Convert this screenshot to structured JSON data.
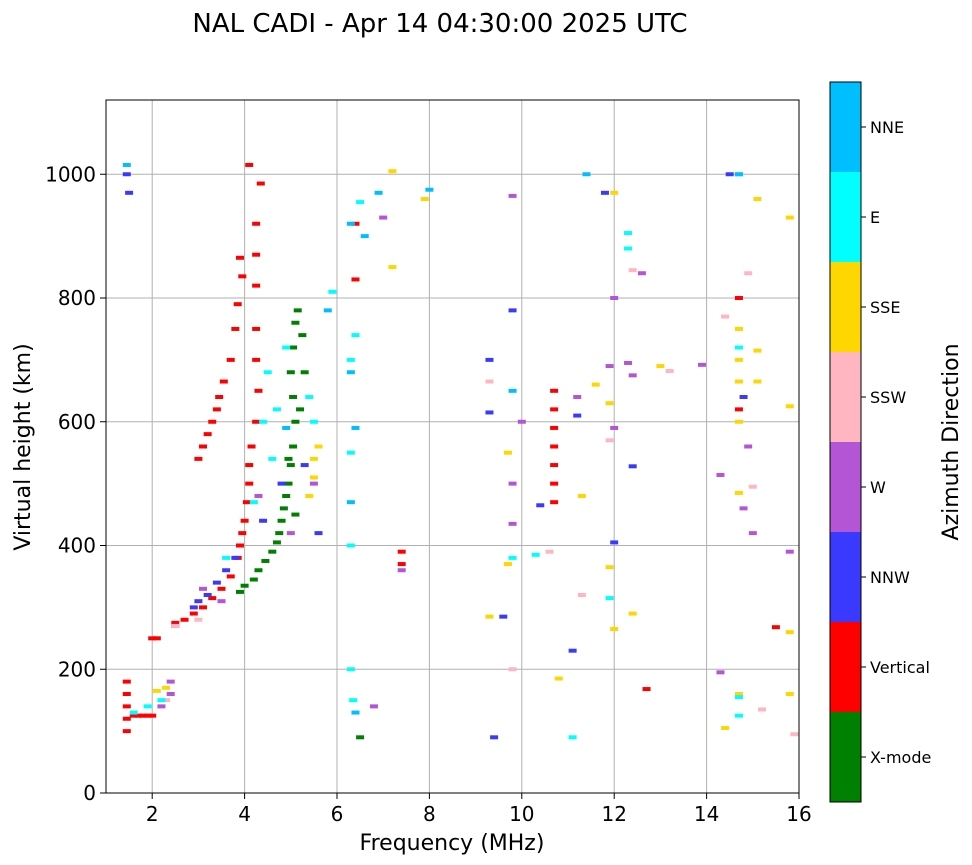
{
  "chart_data": {
    "type": "scatter",
    "title": "NAL CADI - Apr 14 04:30:00 2025 UTC",
    "xlabel": "Frequency (MHz)",
    "ylabel": "Virtual height (km)",
    "xlim": [
      1,
      16
    ],
    "ylim": [
      0,
      1120
    ],
    "xticks": [
      2,
      4,
      6,
      8,
      10,
      12,
      14,
      16
    ],
    "yticks": [
      0,
      200,
      400,
      600,
      800,
      1000
    ],
    "grid": true,
    "colorbar": {
      "title": "Azimuth Direction",
      "position": "right",
      "categories": [
        {
          "name": "X-mode",
          "color": "#008000"
        },
        {
          "name": "Vertical",
          "color": "#ff0000"
        },
        {
          "name": "NNW",
          "color": "#3a3aff"
        },
        {
          "name": "W",
          "color": "#b455d6"
        },
        {
          "name": "SSW",
          "color": "#ffb6c1"
        },
        {
          "name": "SSE",
          "color": "#ffd700"
        },
        {
          "name": "E",
          "color": "#00ffff"
        },
        {
          "name": "NNE",
          "color": "#00bfff"
        }
      ]
    },
    "series": [
      {
        "name": "Vertical",
        "color": "#ff0000",
        "points": [
          [
            1.45,
            100
          ],
          [
            1.45,
            120
          ],
          [
            1.45,
            140
          ],
          [
            1.45,
            160
          ],
          [
            1.45,
            180
          ],
          [
            1.6,
            125
          ],
          [
            1.7,
            125
          ],
          [
            1.8,
            125
          ],
          [
            1.9,
            125
          ],
          [
            2.0,
            125
          ],
          [
            2.0,
            250
          ],
          [
            2.1,
            250
          ],
          [
            2.5,
            275
          ],
          [
            2.7,
            280
          ],
          [
            2.9,
            290
          ],
          [
            3.1,
            300
          ],
          [
            3.3,
            315
          ],
          [
            3.5,
            330
          ],
          [
            3.7,
            350
          ],
          [
            3.85,
            380
          ],
          [
            3.9,
            400
          ],
          [
            3.95,
            420
          ],
          [
            4.0,
            440
          ],
          [
            4.05,
            470
          ],
          [
            4.1,
            500
          ],
          [
            4.1,
            530
          ],
          [
            4.15,
            560
          ],
          [
            4.25,
            600
          ],
          [
            4.3,
            650
          ],
          [
            4.25,
            700
          ],
          [
            4.25,
            750
          ],
          [
            4.25,
            820
          ],
          [
            4.25,
            870
          ],
          [
            4.25,
            920
          ],
          [
            4.35,
            985
          ],
          [
            4.1,
            1015
          ],
          [
            3.95,
            835
          ],
          [
            3.9,
            865
          ],
          [
            3.85,
            790
          ],
          [
            3.8,
            750
          ],
          [
            3.7,
            700
          ],
          [
            3.55,
            665
          ],
          [
            3.45,
            640
          ],
          [
            3.4,
            620
          ],
          [
            3.3,
            600
          ],
          [
            3.2,
            580
          ],
          [
            3.1,
            560
          ],
          [
            3.0,
            540
          ],
          [
            6.4,
            920
          ],
          [
            6.4,
            830
          ],
          [
            10.7,
            650
          ],
          [
            10.7,
            620
          ],
          [
            10.7,
            590
          ],
          [
            10.7,
            560
          ],
          [
            10.7,
            530
          ],
          [
            10.7,
            500
          ],
          [
            10.7,
            470
          ],
          [
            7.4,
            390
          ],
          [
            7.4,
            370
          ],
          [
            14.7,
            800
          ],
          [
            14.7,
            620
          ],
          [
            12.7,
            168
          ],
          [
            15.5,
            268
          ]
        ]
      },
      {
        "name": "X-mode",
        "color": "#008000",
        "points": [
          [
            3.9,
            325
          ],
          [
            4.0,
            335
          ],
          [
            4.2,
            345
          ],
          [
            4.3,
            360
          ],
          [
            4.45,
            375
          ],
          [
            4.6,
            390
          ],
          [
            4.7,
            405
          ],
          [
            4.75,
            420
          ],
          [
            4.8,
            440
          ],
          [
            4.85,
            460
          ],
          [
            4.9,
            480
          ],
          [
            4.95,
            500
          ],
          [
            5.0,
            530
          ],
          [
            5.05,
            560
          ],
          [
            5.1,
            600
          ],
          [
            5.05,
            640
          ],
          [
            5.0,
            680
          ],
          [
            5.05,
            720
          ],
          [
            5.1,
            760
          ],
          [
            5.15,
            780
          ],
          [
            4.95,
            540
          ],
          [
            5.2,
            620
          ],
          [
            5.3,
            680
          ],
          [
            5.25,
            740
          ],
          [
            6.5,
            90
          ],
          [
            5.1,
            450
          ]
        ]
      },
      {
        "name": "NNW",
        "color": "#3a3aff",
        "points": [
          [
            1.45,
            1000
          ],
          [
            1.5,
            970
          ],
          [
            2.5,
            270
          ],
          [
            2.9,
            300
          ],
          [
            3.0,
            310
          ],
          [
            3.2,
            320
          ],
          [
            3.4,
            340
          ],
          [
            3.6,
            360
          ],
          [
            3.8,
            380
          ],
          [
            4.4,
            440
          ],
          [
            4.8,
            500
          ],
          [
            5.3,
            530
          ],
          [
            5.6,
            420
          ],
          [
            9.3,
            700
          ],
          [
            9.3,
            615
          ],
          [
            9.6,
            285
          ],
          [
            9.4,
            90
          ],
          [
            10.4,
            465
          ],
          [
            11.2,
            610
          ],
          [
            11.8,
            970
          ],
          [
            11.1,
            230
          ],
          [
            12.4,
            528
          ],
          [
            14.5,
            1000
          ],
          [
            14.8,
            640
          ],
          [
            12.0,
            405
          ],
          [
            9.8,
            780
          ]
        ]
      },
      {
        "name": "W",
        "color": "#b455d6",
        "points": [
          [
            2.4,
            160
          ],
          [
            2.4,
            180
          ],
          [
            2.2,
            140
          ],
          [
            3.1,
            330
          ],
          [
            3.5,
            310
          ],
          [
            4.3,
            480
          ],
          [
            5.0,
            420
          ],
          [
            5.5,
            500
          ],
          [
            6.8,
            140
          ],
          [
            9.8,
            500
          ],
          [
            9.8,
            435
          ],
          [
            9.8,
            965
          ],
          [
            10.0,
            600
          ],
          [
            11.2,
            640
          ],
          [
            11.9,
            690
          ],
          [
            12.3,
            695
          ],
          [
            12.4,
            675
          ],
          [
            12.6,
            840
          ],
          [
            13.9,
            692
          ],
          [
            14.3,
            514
          ],
          [
            14.3,
            195
          ],
          [
            14.8,
            460
          ],
          [
            14.9,
            560
          ],
          [
            15.0,
            420
          ],
          [
            15.8,
            390
          ],
          [
            7.0,
            930
          ],
          [
            7.4,
            360
          ],
          [
            12.0,
            590
          ],
          [
            12.0,
            800
          ]
        ]
      },
      {
        "name": "SSW",
        "color": "#ffb6c1",
        "points": [
          [
            2.3,
            150
          ],
          [
            2.5,
            270
          ],
          [
            3.0,
            280
          ],
          [
            9.8,
            200
          ],
          [
            9.3,
            665
          ],
          [
            11.3,
            320
          ],
          [
            11.9,
            570
          ],
          [
            12.4,
            845
          ],
          [
            14.4,
            770
          ],
          [
            14.9,
            840
          ],
          [
            15.0,
            495
          ],
          [
            15.2,
            135
          ],
          [
            15.9,
            95
          ],
          [
            10.6,
            390
          ],
          [
            13.2,
            682
          ]
        ]
      },
      {
        "name": "SSE",
        "color": "#ffd700",
        "points": [
          [
            2.1,
            165
          ],
          [
            2.3,
            170
          ],
          [
            5.4,
            480
          ],
          [
            5.5,
            510
          ],
          [
            5.6,
            560
          ],
          [
            5.5,
            540
          ],
          [
            7.2,
            850
          ],
          [
            7.2,
            1005
          ],
          [
            7.9,
            960
          ],
          [
            9.3,
            285
          ],
          [
            9.7,
            370
          ],
          [
            9.7,
            550
          ],
          [
            10.8,
            185
          ],
          [
            11.3,
            480
          ],
          [
            11.6,
            660
          ],
          [
            11.9,
            630
          ],
          [
            11.9,
            365
          ],
          [
            12.0,
            265
          ],
          [
            12.0,
            970
          ],
          [
            12.4,
            290
          ],
          [
            13.0,
            690
          ],
          [
            14.4,
            105
          ],
          [
            14.7,
            750
          ],
          [
            14.7,
            700
          ],
          [
            14.7,
            665
          ],
          [
            14.7,
            600
          ],
          [
            14.7,
            485
          ],
          [
            14.7,
            160
          ],
          [
            15.1,
            960
          ],
          [
            15.1,
            715
          ],
          [
            15.1,
            665
          ],
          [
            15.8,
            625
          ],
          [
            15.8,
            260
          ],
          [
            15.8,
            160
          ],
          [
            15.8,
            930
          ]
        ]
      },
      {
        "name": "E",
        "color": "#00ffff",
        "points": [
          [
            1.6,
            130
          ],
          [
            1.9,
            140
          ],
          [
            2.2,
            150
          ],
          [
            3.6,
            380
          ],
          [
            4.4,
            600
          ],
          [
            4.6,
            540
          ],
          [
            4.5,
            680
          ],
          [
            4.7,
            620
          ],
          [
            4.9,
            720
          ],
          [
            5.4,
            640
          ],
          [
            5.5,
            600
          ],
          [
            5.9,
            810
          ],
          [
            6.3,
            700
          ],
          [
            6.3,
            550
          ],
          [
            6.3,
            400
          ],
          [
            6.4,
            740
          ],
          [
            6.3,
            200
          ],
          [
            6.35,
            150
          ],
          [
            6.5,
            955
          ],
          [
            9.8,
            380
          ],
          [
            10.3,
            385
          ],
          [
            11.1,
            90
          ],
          [
            11.9,
            315
          ],
          [
            12.3,
            880
          ],
          [
            12.3,
            905
          ],
          [
            14.7,
            1000
          ],
          [
            14.7,
            125
          ],
          [
            14.7,
            720
          ],
          [
            14.7,
            155
          ],
          [
            4.2,
            470
          ]
        ]
      },
      {
        "name": "NNE",
        "color": "#00bfff",
        "points": [
          [
            1.45,
            1015
          ],
          [
            6.3,
            920
          ],
          [
            6.3,
            680
          ],
          [
            6.4,
            590
          ],
          [
            6.3,
            470
          ],
          [
            6.4,
            130
          ],
          [
            6.6,
            900
          ],
          [
            6.9,
            970
          ],
          [
            8.0,
            975
          ],
          [
            9.8,
            650
          ],
          [
            11.4,
            1000
          ],
          [
            14.7,
            1000
          ],
          [
            5.8,
            780
          ],
          [
            4.9,
            590
          ]
        ]
      }
    ]
  }
}
